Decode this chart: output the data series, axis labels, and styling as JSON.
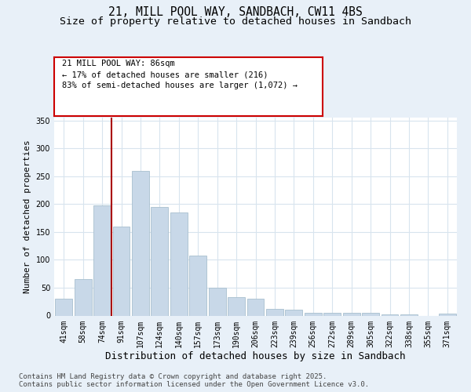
{
  "title_line1": "21, MILL POOL WAY, SANDBACH, CW11 4BS",
  "title_line2": "Size of property relative to detached houses in Sandbach",
  "xlabel": "Distribution of detached houses by size in Sandbach",
  "ylabel": "Number of detached properties",
  "categories": [
    "41sqm",
    "58sqm",
    "74sqm",
    "91sqm",
    "107sqm",
    "124sqm",
    "140sqm",
    "157sqm",
    "173sqm",
    "190sqm",
    "206sqm",
    "223sqm",
    "239sqm",
    "256sqm",
    "272sqm",
    "289sqm",
    "305sqm",
    "322sqm",
    "338sqm",
    "355sqm",
    "371sqm"
  ],
  "values": [
    30,
    65,
    197,
    160,
    260,
    195,
    185,
    107,
    50,
    33,
    30,
    12,
    10,
    5,
    5,
    5,
    5,
    2,
    2,
    0,
    3
  ],
  "bar_color": "#c8d8e8",
  "bar_edge_color": "#a8bfcf",
  "grid_color": "#d8e4ee",
  "bg_color": "#e8f0f8",
  "plot_bg_color": "#ffffff",
  "redline_x": 2.5,
  "annotation_text": "21 MILL POOL WAY: 86sqm\n← 17% of detached houses are smaller (216)\n83% of semi-detached houses are larger (1,072) →",
  "annotation_box_color": "#ffffff",
  "annotation_box_edge": "#cc0000",
  "redline_color": "#aa0000",
  "ylim": [
    0,
    355
  ],
  "yticks": [
    0,
    50,
    100,
    150,
    200,
    250,
    300,
    350
  ],
  "footer": "Contains HM Land Registry data © Crown copyright and database right 2025.\nContains public sector information licensed under the Open Government Licence v3.0.",
  "title_fontsize": 10.5,
  "subtitle_fontsize": 9.5,
  "tick_fontsize": 7,
  "xlabel_fontsize": 9,
  "ylabel_fontsize": 8,
  "footer_fontsize": 6.5,
  "annot_fontsize": 7.5
}
